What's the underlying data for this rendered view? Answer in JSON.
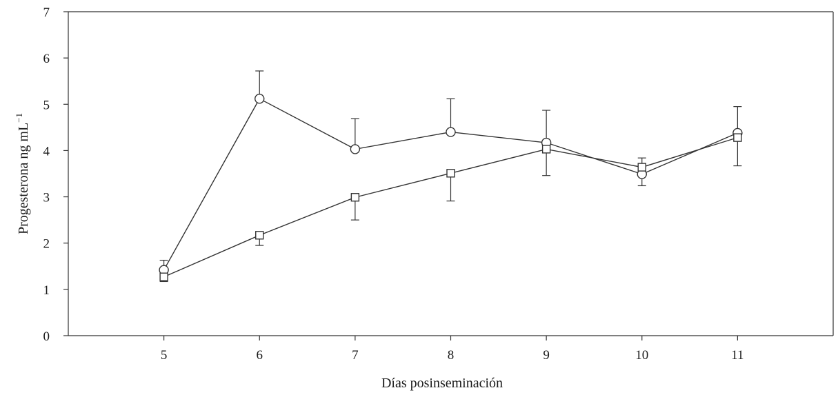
{
  "chart_data": {
    "type": "line",
    "xlabel": "Días posinseminación",
    "ylabel": "Progesterona ng mL",
    "ylabel_sup": "−1",
    "x": [
      5,
      6,
      7,
      8,
      9,
      10,
      11
    ],
    "xlim": [
      4,
      12
    ],
    "ylim": [
      0,
      7
    ],
    "yticks": [
      0,
      1,
      2,
      3,
      4,
      5,
      6,
      7
    ],
    "grid": false,
    "legend": "none",
    "series": [
      {
        "marker": "circle",
        "values": [
          1.42,
          5.12,
          4.03,
          4.4,
          4.17,
          3.49,
          4.38
        ],
        "err_upper": [
          1.63,
          5.72,
          4.69,
          5.12,
          4.87,
          3.84,
          4.95
        ],
        "err_lower": [
          1.42,
          5.12,
          4.03,
          4.4,
          4.17,
          3.24,
          3.67
        ]
      },
      {
        "marker": "square",
        "values": [
          1.27,
          2.17,
          2.99,
          3.51,
          4.03,
          3.64,
          4.28
        ],
        "err_upper": [
          1.27,
          2.17,
          2.99,
          3.51,
          4.03,
          3.64,
          4.28
        ],
        "err_lower": [
          1.17,
          1.95,
          2.5,
          2.91,
          3.46,
          3.64,
          4.28
        ]
      }
    ]
  }
}
